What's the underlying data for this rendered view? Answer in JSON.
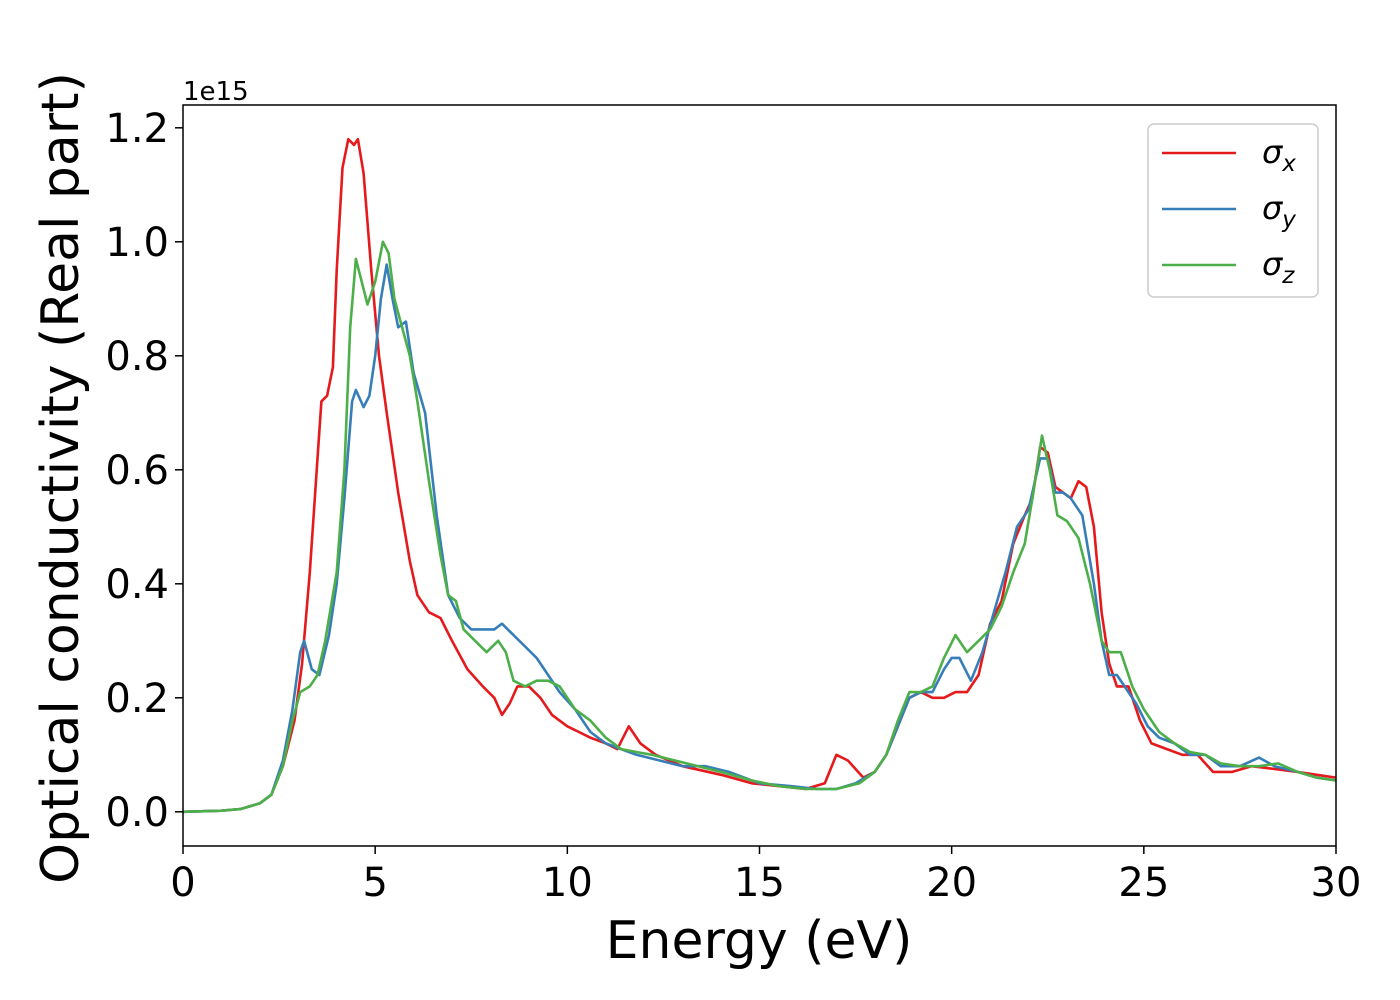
{
  "chart_data": {
    "type": "line",
    "xlabel": "Energy (eV)",
    "ylabel": "Optical conductivity (Real part)",
    "y_offset_label": "1e15",
    "y_scale": 1000000000000000.0,
    "xlim": [
      0,
      30
    ],
    "ylim": [
      -0.06,
      1.24
    ],
    "x_ticks": [
      0,
      5,
      10,
      15,
      20,
      25,
      30
    ],
    "x_tick_labels": [
      "0",
      "5",
      "10",
      "15",
      "20",
      "25",
      "30"
    ],
    "y_ticks": [
      0.0,
      0.2,
      0.4,
      0.6,
      0.8,
      1.0,
      1.2
    ],
    "y_tick_labels": [
      "0.0",
      "0.2",
      "0.4",
      "0.6",
      "0.8",
      "1.0",
      "1.2"
    ],
    "grid": false,
    "legend_position": "top-right",
    "series": [
      {
        "name": "σ",
        "subscript": "x",
        "color": "#e41a1c",
        "points": [
          [
            0,
            0
          ],
          [
            1,
            0.002
          ],
          [
            1.5,
            0.005
          ],
          [
            2,
            0.015
          ],
          [
            2.3,
            0.03
          ],
          [
            2.6,
            0.08
          ],
          [
            2.9,
            0.16
          ],
          [
            3.1,
            0.26
          ],
          [
            3.3,
            0.42
          ],
          [
            3.5,
            0.62
          ],
          [
            3.6,
            0.72
          ],
          [
            3.75,
            0.73
          ],
          [
            3.9,
            0.78
          ],
          [
            4.0,
            0.95
          ],
          [
            4.15,
            1.13
          ],
          [
            4.3,
            1.18
          ],
          [
            4.45,
            1.17
          ],
          [
            4.55,
            1.18
          ],
          [
            4.7,
            1.12
          ],
          [
            4.9,
            0.95
          ],
          [
            5.1,
            0.8
          ],
          [
            5.3,
            0.7
          ],
          [
            5.6,
            0.56
          ],
          [
            5.9,
            0.44
          ],
          [
            6.1,
            0.38
          ],
          [
            6.4,
            0.35
          ],
          [
            6.7,
            0.34
          ],
          [
            7.0,
            0.3
          ],
          [
            7.4,
            0.25
          ],
          [
            7.8,
            0.22
          ],
          [
            8.1,
            0.2
          ],
          [
            8.3,
            0.17
          ],
          [
            8.5,
            0.19
          ],
          [
            8.7,
            0.22
          ],
          [
            9.0,
            0.22
          ],
          [
            9.3,
            0.2
          ],
          [
            9.6,
            0.17
          ],
          [
            10.0,
            0.15
          ],
          [
            10.3,
            0.14
          ],
          [
            10.6,
            0.13
          ],
          [
            11.0,
            0.12
          ],
          [
            11.3,
            0.11
          ],
          [
            11.6,
            0.15
          ],
          [
            11.9,
            0.12
          ],
          [
            12.3,
            0.1
          ],
          [
            13.0,
            0.08
          ],
          [
            14.0,
            0.065
          ],
          [
            14.8,
            0.05
          ],
          [
            15.5,
            0.045
          ],
          [
            16.2,
            0.04
          ],
          [
            16.7,
            0.05
          ],
          [
            17.0,
            0.1
          ],
          [
            17.3,
            0.09
          ],
          [
            17.7,
            0.06
          ],
          [
            18.0,
            0.07
          ],
          [
            18.3,
            0.1
          ],
          [
            18.6,
            0.15
          ],
          [
            18.9,
            0.2
          ],
          [
            19.2,
            0.21
          ],
          [
            19.5,
            0.2
          ],
          [
            19.8,
            0.2
          ],
          [
            20.1,
            0.21
          ],
          [
            20.4,
            0.21
          ],
          [
            20.7,
            0.24
          ],
          [
            21.0,
            0.33
          ],
          [
            21.3,
            0.37
          ],
          [
            21.6,
            0.47
          ],
          [
            21.9,
            0.52
          ],
          [
            22.1,
            0.55
          ],
          [
            22.3,
            0.64
          ],
          [
            22.5,
            0.63
          ],
          [
            22.7,
            0.57
          ],
          [
            22.9,
            0.56
          ],
          [
            23.1,
            0.55
          ],
          [
            23.3,
            0.58
          ],
          [
            23.5,
            0.57
          ],
          [
            23.7,
            0.5
          ],
          [
            23.9,
            0.35
          ],
          [
            24.1,
            0.26
          ],
          [
            24.3,
            0.22
          ],
          [
            24.6,
            0.22
          ],
          [
            24.9,
            0.16
          ],
          [
            25.2,
            0.12
          ],
          [
            25.6,
            0.11
          ],
          [
            26.0,
            0.1
          ],
          [
            26.4,
            0.1
          ],
          [
            26.8,
            0.07
          ],
          [
            27.3,
            0.07
          ],
          [
            27.8,
            0.08
          ],
          [
            28.4,
            0.075
          ],
          [
            29.0,
            0.07
          ],
          [
            29.5,
            0.065
          ],
          [
            30,
            0.06
          ]
        ]
      },
      {
        "name": "σ",
        "subscript": "y",
        "color": "#377eb8",
        "points": [
          [
            0,
            0
          ],
          [
            1,
            0.002
          ],
          [
            1.5,
            0.005
          ],
          [
            2,
            0.015
          ],
          [
            2.3,
            0.03
          ],
          [
            2.6,
            0.09
          ],
          [
            2.85,
            0.18
          ],
          [
            3.05,
            0.28
          ],
          [
            3.15,
            0.3
          ],
          [
            3.35,
            0.25
          ],
          [
            3.55,
            0.24
          ],
          [
            3.8,
            0.31
          ],
          [
            4.0,
            0.4
          ],
          [
            4.2,
            0.55
          ],
          [
            4.4,
            0.72
          ],
          [
            4.5,
            0.74
          ],
          [
            4.7,
            0.71
          ],
          [
            4.85,
            0.73
          ],
          [
            5.0,
            0.8
          ],
          [
            5.15,
            0.9
          ],
          [
            5.3,
            0.96
          ],
          [
            5.45,
            0.9
          ],
          [
            5.6,
            0.85
          ],
          [
            5.8,
            0.86
          ],
          [
            6.0,
            0.77
          ],
          [
            6.3,
            0.7
          ],
          [
            6.6,
            0.52
          ],
          [
            6.9,
            0.38
          ],
          [
            7.2,
            0.34
          ],
          [
            7.5,
            0.32
          ],
          [
            7.8,
            0.32
          ],
          [
            8.1,
            0.32
          ],
          [
            8.3,
            0.33
          ],
          [
            8.6,
            0.31
          ],
          [
            8.9,
            0.29
          ],
          [
            9.2,
            0.27
          ],
          [
            9.5,
            0.24
          ],
          [
            9.8,
            0.21
          ],
          [
            10.2,
            0.18
          ],
          [
            10.6,
            0.14
          ],
          [
            11.0,
            0.12
          ],
          [
            11.4,
            0.11
          ],
          [
            11.8,
            0.1
          ],
          [
            12.4,
            0.09
          ],
          [
            13.0,
            0.08
          ],
          [
            13.6,
            0.08
          ],
          [
            14.2,
            0.07
          ],
          [
            15.0,
            0.05
          ],
          [
            15.8,
            0.045
          ],
          [
            16.5,
            0.04
          ],
          [
            17.0,
            0.04
          ],
          [
            17.5,
            0.05
          ],
          [
            18.0,
            0.07
          ],
          [
            18.3,
            0.1
          ],
          [
            18.6,
            0.15
          ],
          [
            18.9,
            0.2
          ],
          [
            19.2,
            0.21
          ],
          [
            19.5,
            0.21
          ],
          [
            19.8,
            0.25
          ],
          [
            20.0,
            0.27
          ],
          [
            20.2,
            0.27
          ],
          [
            20.5,
            0.23
          ],
          [
            20.8,
            0.28
          ],
          [
            21.1,
            0.35
          ],
          [
            21.4,
            0.42
          ],
          [
            21.7,
            0.5
          ],
          [
            22.0,
            0.53
          ],
          [
            22.3,
            0.62
          ],
          [
            22.5,
            0.62
          ],
          [
            22.7,
            0.56
          ],
          [
            22.9,
            0.56
          ],
          [
            23.1,
            0.55
          ],
          [
            23.4,
            0.52
          ],
          [
            23.7,
            0.4
          ],
          [
            23.9,
            0.3
          ],
          [
            24.1,
            0.24
          ],
          [
            24.3,
            0.24
          ],
          [
            24.5,
            0.22
          ],
          [
            24.8,
            0.19
          ],
          [
            25.1,
            0.15
          ],
          [
            25.4,
            0.13
          ],
          [
            25.8,
            0.12
          ],
          [
            26.2,
            0.1
          ],
          [
            26.6,
            0.1
          ],
          [
            27.0,
            0.08
          ],
          [
            27.5,
            0.08
          ],
          [
            28.0,
            0.095
          ],
          [
            28.4,
            0.08
          ],
          [
            29.0,
            0.07
          ],
          [
            29.5,
            0.06
          ],
          [
            30,
            0.055
          ]
        ]
      },
      {
        "name": "σ",
        "subscript": "z",
        "color": "#4daf4a",
        "points": [
          [
            0,
            0
          ],
          [
            1,
            0.002
          ],
          [
            1.5,
            0.005
          ],
          [
            2,
            0.015
          ],
          [
            2.3,
            0.03
          ],
          [
            2.6,
            0.08
          ],
          [
            2.85,
            0.16
          ],
          [
            3.05,
            0.21
          ],
          [
            3.3,
            0.22
          ],
          [
            3.5,
            0.24
          ],
          [
            3.7,
            0.3
          ],
          [
            4.0,
            0.42
          ],
          [
            4.2,
            0.6
          ],
          [
            4.35,
            0.85
          ],
          [
            4.5,
            0.97
          ],
          [
            4.65,
            0.93
          ],
          [
            4.8,
            0.89
          ],
          [
            5.0,
            0.93
          ],
          [
            5.2,
            1.0
          ],
          [
            5.35,
            0.98
          ],
          [
            5.5,
            0.9
          ],
          [
            5.7,
            0.85
          ],
          [
            5.9,
            0.8
          ],
          [
            6.1,
            0.72
          ],
          [
            6.4,
            0.58
          ],
          [
            6.7,
            0.45
          ],
          [
            6.9,
            0.38
          ],
          [
            7.1,
            0.37
          ],
          [
            7.3,
            0.32
          ],
          [
            7.6,
            0.3
          ],
          [
            7.9,
            0.28
          ],
          [
            8.2,
            0.3
          ],
          [
            8.4,
            0.28
          ],
          [
            8.6,
            0.23
          ],
          [
            8.9,
            0.22
          ],
          [
            9.2,
            0.23
          ],
          [
            9.5,
            0.23
          ],
          [
            9.8,
            0.22
          ],
          [
            10.2,
            0.18
          ],
          [
            10.6,
            0.16
          ],
          [
            11.0,
            0.13
          ],
          [
            11.4,
            0.11
          ],
          [
            11.8,
            0.105
          ],
          [
            12.2,
            0.1
          ],
          [
            12.8,
            0.09
          ],
          [
            13.4,
            0.08
          ],
          [
            14.0,
            0.07
          ],
          [
            14.8,
            0.055
          ],
          [
            15.5,
            0.045
          ],
          [
            16.2,
            0.04
          ],
          [
            17.0,
            0.04
          ],
          [
            17.6,
            0.05
          ],
          [
            18.0,
            0.07
          ],
          [
            18.3,
            0.1
          ],
          [
            18.6,
            0.16
          ],
          [
            18.9,
            0.21
          ],
          [
            19.2,
            0.21
          ],
          [
            19.5,
            0.22
          ],
          [
            19.8,
            0.27
          ],
          [
            20.1,
            0.31
          ],
          [
            20.4,
            0.28
          ],
          [
            20.7,
            0.3
          ],
          [
            21.0,
            0.32
          ],
          [
            21.3,
            0.36
          ],
          [
            21.6,
            0.42
          ],
          [
            21.9,
            0.47
          ],
          [
            22.1,
            0.55
          ],
          [
            22.35,
            0.66
          ],
          [
            22.55,
            0.6
          ],
          [
            22.75,
            0.52
          ],
          [
            23.0,
            0.51
          ],
          [
            23.3,
            0.48
          ],
          [
            23.6,
            0.4
          ],
          [
            23.9,
            0.3
          ],
          [
            24.1,
            0.28
          ],
          [
            24.4,
            0.28
          ],
          [
            24.7,
            0.22
          ],
          [
            25.0,
            0.18
          ],
          [
            25.4,
            0.14
          ],
          [
            25.8,
            0.12
          ],
          [
            26.2,
            0.105
          ],
          [
            26.6,
            0.1
          ],
          [
            27.0,
            0.085
          ],
          [
            27.5,
            0.08
          ],
          [
            28.0,
            0.08
          ],
          [
            28.5,
            0.085
          ],
          [
            29.0,
            0.07
          ],
          [
            29.5,
            0.06
          ],
          [
            30,
            0.055
          ]
        ]
      }
    ]
  }
}
